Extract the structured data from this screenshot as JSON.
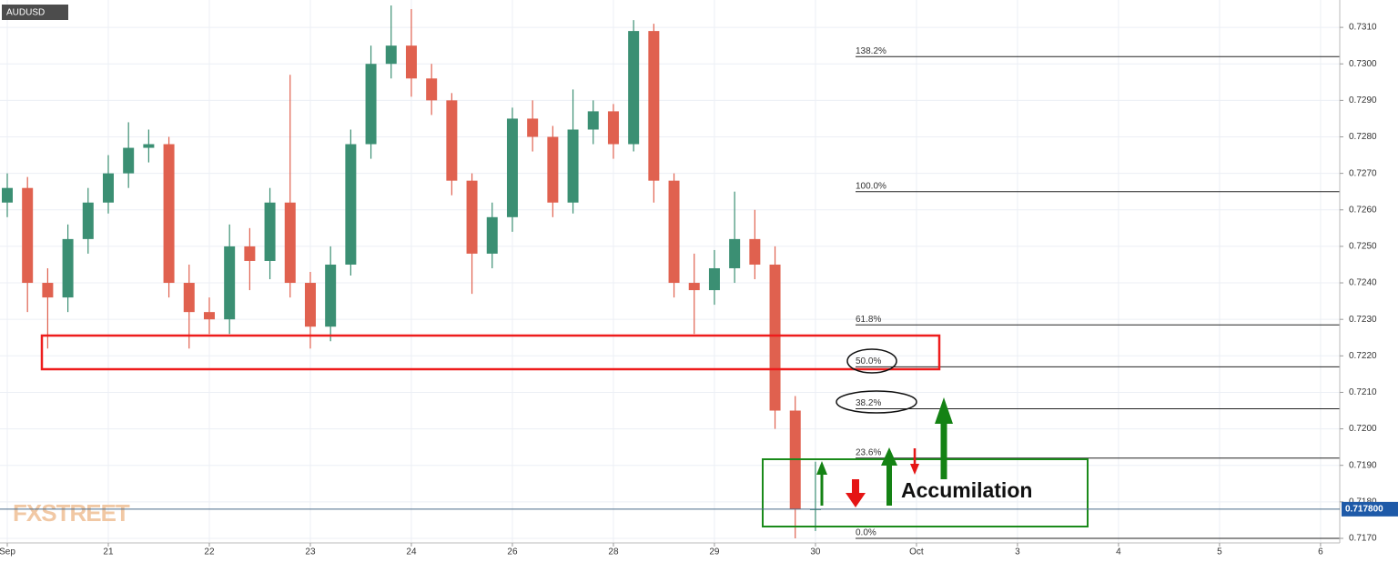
{
  "symbol": "AUDUSD",
  "watermark": "FXSTREET",
  "chart_data": {
    "type": "candlestick",
    "x": [
      0,
      0.2,
      0.4,
      0.6,
      0.8,
      1,
      1.2,
      1.4,
      1.6,
      1.8,
      2,
      2.2,
      2.4,
      2.6,
      2.8,
      3,
      3.2,
      3.4,
      3.6,
      3.8,
      4,
      4.2,
      4.4,
      4.6,
      4.8,
      5,
      5.2,
      5.4,
      5.6,
      5.8,
      6,
      6.2,
      6.4,
      6.6,
      6.8,
      7,
      7.2,
      7.4,
      7.6,
      7.8,
      8
    ],
    "open": [
      0.7262,
      0.7266,
      0.724,
      0.7236,
      0.7252,
      0.7262,
      0.727,
      0.7277,
      0.7278,
      0.724,
      0.7232,
      0.723,
      0.725,
      0.7246,
      0.7262,
      0.724,
      0.7228,
      0.7245,
      0.7278,
      0.73,
      0.7305,
      0.7296,
      0.729,
      0.7268,
      0.7248,
      0.7258,
      0.7285,
      0.728,
      0.7262,
      0.7282,
      0.7287,
      0.7278,
      0.7309,
      0.7268,
      0.724,
      0.7238,
      0.7244,
      0.7252,
      0.7245,
      0.7205,
      0.7178
    ],
    "high": [
      0.727,
      0.7269,
      0.7244,
      0.7256,
      0.7266,
      0.7275,
      0.7284,
      0.7282,
      0.728,
      0.7245,
      0.7236,
      0.7256,
      0.7255,
      0.7266,
      0.7297,
      0.7243,
      0.725,
      0.7282,
      0.7305,
      0.7316,
      0.7315,
      0.73,
      0.7292,
      0.727,
      0.7262,
      0.7288,
      0.729,
      0.7283,
      0.7293,
      0.729,
      0.7289,
      0.7312,
      0.7311,
      0.727,
      0.7248,
      0.7249,
      0.7265,
      0.726,
      0.725,
      0.7209,
      0.7191
    ],
    "low": [
      0.7258,
      0.7232,
      0.7222,
      0.7232,
      0.7248,
      0.7259,
      0.7266,
      0.7273,
      0.7236,
      0.7222,
      0.7226,
      0.7226,
      0.7238,
      0.7241,
      0.7236,
      0.7222,
      0.7224,
      0.7242,
      0.7274,
      0.7296,
      0.7291,
      0.7286,
      0.7264,
      0.7237,
      0.7244,
      0.7254,
      0.7276,
      0.7258,
      0.7259,
      0.7278,
      0.7274,
      0.7276,
      0.7262,
      0.7236,
      0.7226,
      0.7234,
      0.724,
      0.7241,
      0.72,
      0.717,
      0.7172
    ],
    "close": [
      0.7266,
      0.724,
      0.7236,
      0.7252,
      0.7262,
      0.727,
      0.7277,
      0.7278,
      0.724,
      0.7232,
      0.723,
      0.725,
      0.7246,
      0.7262,
      0.724,
      0.7228,
      0.7245,
      0.7278,
      0.73,
      0.7305,
      0.7296,
      0.729,
      0.7268,
      0.7248,
      0.7258,
      0.7285,
      0.728,
      0.7262,
      0.7282,
      0.7287,
      0.7278,
      0.7309,
      0.7268,
      0.724,
      0.7238,
      0.7244,
      0.7252,
      0.7245,
      0.7205,
      0.7178,
      0.7178
    ],
    "up_color": "#3b8f73",
    "down_color": "#e0614f",
    "xlim": [
      -0.072,
      13.19
    ],
    "ylim": [
      0.7169,
      0.7317
    ],
    "xticks": [
      {
        "value": 0,
        "label": "Sep"
      },
      {
        "value": 1,
        "label": "21"
      },
      {
        "value": 2,
        "label": "22"
      },
      {
        "value": 3,
        "label": "23"
      },
      {
        "value": 4,
        "label": "24"
      },
      {
        "value": 5,
        "label": "26"
      },
      {
        "value": 6,
        "label": "28"
      },
      {
        "value": 7,
        "label": "29"
      },
      {
        "value": 8,
        "label": "30"
      },
      {
        "value": 9,
        "label": "Oct"
      },
      {
        "value": 10,
        "label": "3"
      },
      {
        "value": 11,
        "label": "4"
      },
      {
        "value": 12,
        "label": "5"
      },
      {
        "value": 13,
        "label": "6"
      }
    ],
    "yticks": [
      {
        "value": 0.717,
        "label": "0.7170"
      },
      {
        "value": 0.718,
        "label": "0.7180"
      },
      {
        "value": 0.719,
        "label": "0.7190"
      },
      {
        "value": 0.72,
        "label": "0.7200"
      },
      {
        "value": 0.721,
        "label": "0.7210"
      },
      {
        "value": 0.722,
        "label": "0.7220"
      },
      {
        "value": 0.723,
        "label": "0.7230"
      },
      {
        "value": 0.724,
        "label": "0.7240"
      },
      {
        "value": 0.725,
        "label": "0.7250"
      },
      {
        "value": 0.726,
        "label": "0.7260"
      },
      {
        "value": 0.727,
        "label": "0.7270"
      },
      {
        "value": 0.728,
        "label": "0.7280"
      },
      {
        "value": 0.729,
        "label": "0.7290"
      },
      {
        "value": 0.73,
        "label": "0.7300"
      },
      {
        "value": 0.731,
        "label": "0.7310"
      }
    ],
    "grid": true,
    "last_price": {
      "value": 0.7178,
      "label": "0.717800"
    },
    "fib_levels": [
      {
        "value": 0.7302,
        "label": "138.2%"
      },
      {
        "value": 0.7265,
        "label": "100.0%"
      },
      {
        "value": 0.72285,
        "label": "61.8%"
      },
      {
        "value": 0.7217,
        "label": "50.0%"
      },
      {
        "value": 0.72055,
        "label": "38.2%"
      },
      {
        "value": 0.7192,
        "label": "23.6%"
      },
      {
        "value": 0.717,
        "label": "0.0%"
      }
    ],
    "annotation": "Accumilation"
  }
}
